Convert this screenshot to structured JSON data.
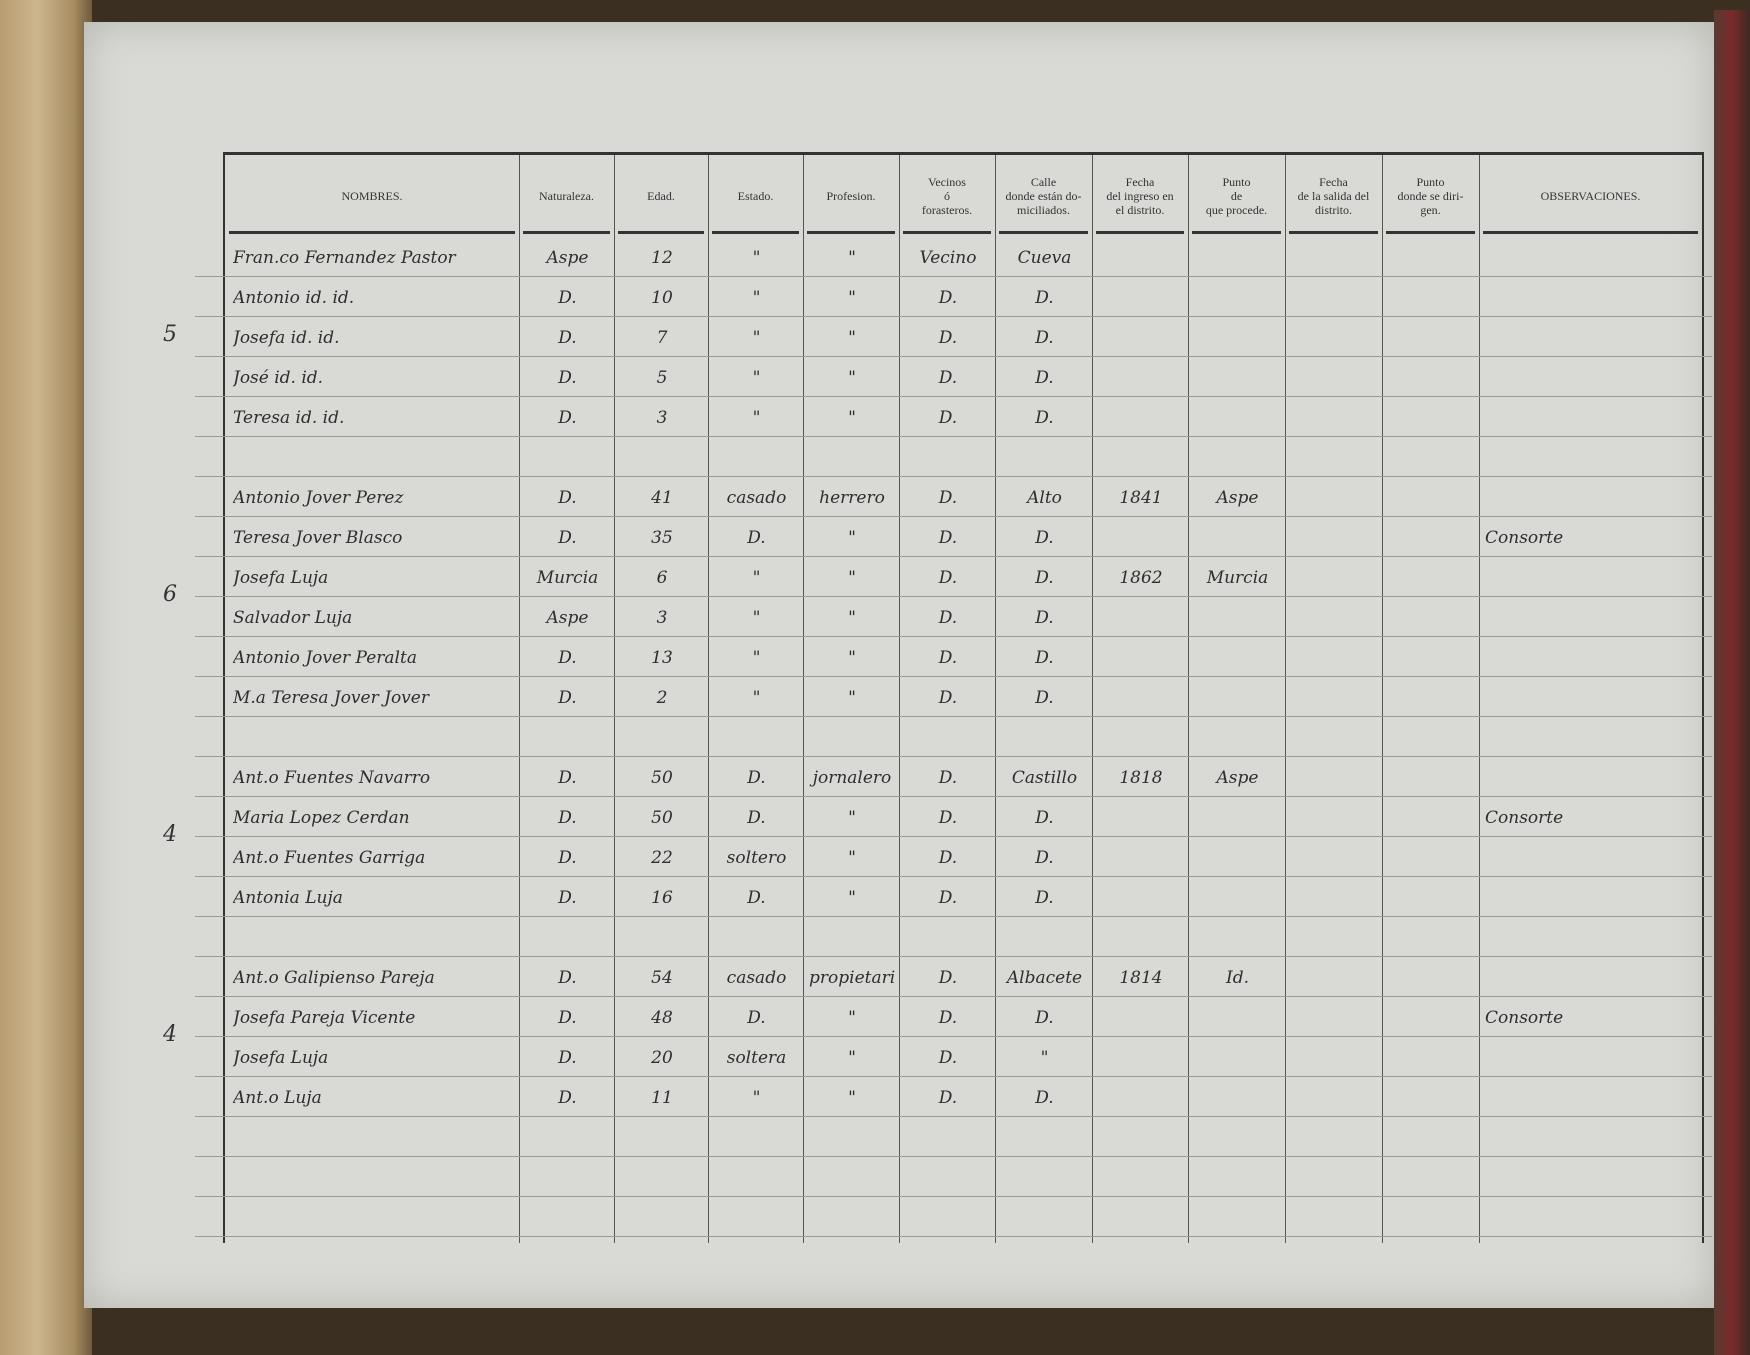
{
  "headers": [
    "NOMBRES.",
    "Naturaleza.",
    "Edad.",
    "Estado.",
    "Profesion.",
    "Vecinos\nó\nforasteros.",
    "Calle\ndonde están do-\nmiciliados.",
    "Fecha\ndel ingreso en\nel distrito.",
    "Punto\nde\nque procede.",
    "Fecha\nde la salida del\ndistrito.",
    "Punto\ndonde se diri-\ngen.",
    "OBSERVACIONES."
  ],
  "groups": [
    {
      "count": "5",
      "rows": [
        [
          "Fran.co Fernandez Pastor",
          "Aspe",
          "12",
          "\"",
          "\"",
          "Vecino",
          "Cueva",
          "",
          "",
          "",
          "",
          ""
        ],
        [
          "Antonio id. id.",
          "D.",
          "10",
          "\"",
          "\"",
          "D.",
          "D.",
          "",
          "",
          "",
          "",
          ""
        ],
        [
          "Josefa id. id.",
          "D.",
          "7",
          "\"",
          "\"",
          "D.",
          "D.",
          "",
          "",
          "",
          "",
          ""
        ],
        [
          "José id. id.",
          "D.",
          "5",
          "\"",
          "\"",
          "D.",
          "D.",
          "",
          "",
          "",
          "",
          ""
        ],
        [
          "Teresa id. id.",
          "D.",
          "3",
          "\"",
          "\"",
          "D.",
          "D.",
          "",
          "",
          "",
          "",
          ""
        ]
      ]
    },
    {
      "count": "6",
      "rows": [
        [
          "Antonio Jover Perez",
          "D.",
          "41",
          "casado",
          "herrero",
          "D.",
          "Alto",
          "1841",
          "Aspe",
          "",
          "",
          ""
        ],
        [
          "Teresa Jover Blasco",
          "D.",
          "35",
          "D.",
          "\"",
          "D.",
          "D.",
          "",
          "",
          "",
          "",
          "Consorte"
        ],
        [
          "Josefa Luja",
          "Murcia",
          "6",
          "\"",
          "\"",
          "D.",
          "D.",
          "1862",
          "Murcia",
          "",
          "",
          ""
        ],
        [
          "Salvador Luja",
          "Aspe",
          "3",
          "\"",
          "\"",
          "D.",
          "D.",
          "",
          "",
          "",
          "",
          ""
        ],
        [
          "Antonio Jover Peralta",
          "D.",
          "13",
          "\"",
          "\"",
          "D.",
          "D.",
          "",
          "",
          "",
          "",
          ""
        ],
        [
          "M.a Teresa Jover Jover",
          "D.",
          "2",
          "\"",
          "\"",
          "D.",
          "D.",
          "",
          "",
          "",
          "",
          ""
        ]
      ]
    },
    {
      "count": "4",
      "rows": [
        [
          "Ant.o Fuentes Navarro",
          "D.",
          "50",
          "D.",
          "jornalero",
          "D.",
          "Castillo",
          "1818",
          "Aspe",
          "",
          "",
          ""
        ],
        [
          "Maria Lopez Cerdan",
          "D.",
          "50",
          "D.",
          "\"",
          "D.",
          "D.",
          "",
          "",
          "",
          "",
          "Consorte"
        ],
        [
          "Ant.o Fuentes Garriga",
          "D.",
          "22",
          "soltero",
          "\"",
          "D.",
          "D.",
          "",
          "",
          "",
          "",
          ""
        ],
        [
          "Antonia Luja",
          "D.",
          "16",
          "D.",
          "\"",
          "D.",
          "D.",
          "",
          "",
          "",
          "",
          ""
        ]
      ]
    },
    {
      "count": "4",
      "rows": [
        [
          "Ant.o Galipienso Pareja",
          "D.",
          "54",
          "casado",
          "propietario",
          "D.",
          "Albacete",
          "1814",
          "Id.",
          "",
          "",
          ""
        ],
        [
          "Josefa Pareja Vicente",
          "D.",
          "48",
          "D.",
          "\"",
          "D.",
          "D.",
          "",
          "",
          "",
          "",
          "Consorte"
        ],
        [
          "Josefa Luja",
          "D.",
          "20",
          "soltera",
          "\"",
          "D.",
          "\"",
          "",
          "",
          "",
          "",
          ""
        ],
        [
          "Ant.o Luja",
          "D.",
          "11",
          "\"",
          "\"",
          "D.",
          "D.",
          "",
          "",
          "",
          "",
          ""
        ]
      ]
    }
  ]
}
